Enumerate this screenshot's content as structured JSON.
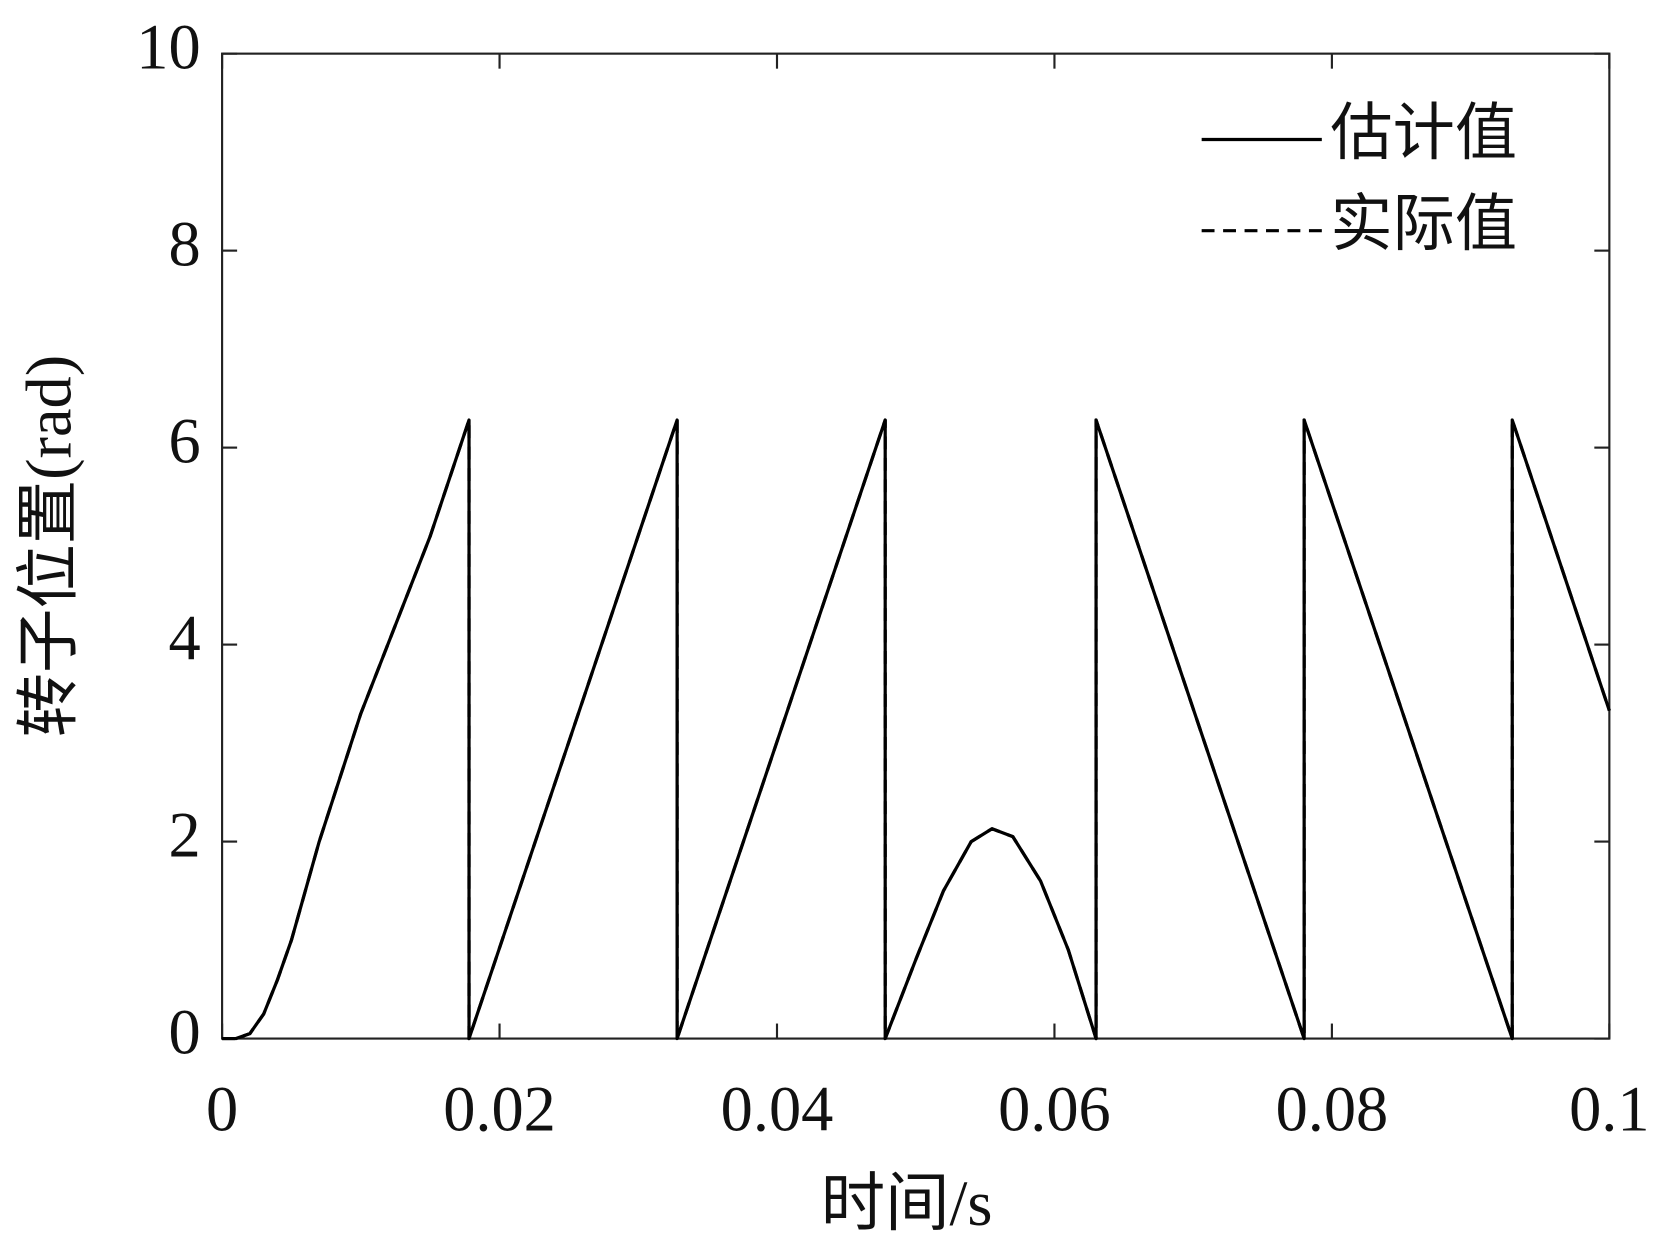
{
  "chart_data": {
    "type": "line",
    "x_label": "时间/s",
    "y_label": "转子位置(rad)",
    "x": [
      0,
      0.001,
      0.002,
      0.003,
      0.004,
      0.005,
      0.006,
      0.007,
      0.01,
      0.015,
      0.0178,
      0.0178,
      0.0328,
      0.0328,
      0.0478,
      0.0478,
      0.05,
      0.052,
      0.054,
      0.0555,
      0.057,
      0.059,
      0.061,
      0.063,
      0.063,
      0.078,
      0.078,
      0.093,
      0.093,
      0.1
    ],
    "series": [
      {
        "name": "估计值",
        "color": "#000000",
        "dash": false,
        "values": [
          0,
          0,
          0.05,
          0.25,
          0.6,
          1.0,
          1.5,
          2.0,
          3.3,
          5.1,
          6.28,
          0,
          6.28,
          0,
          6.28,
          0,
          0.8,
          1.5,
          2.0,
          2.13,
          2.05,
          1.6,
          0.9,
          0,
          6.28,
          0,
          6.28,
          0,
          6.28,
          3.33
        ]
      },
      {
        "name": "实际值",
        "color": "#000000",
        "dash": true,
        "values": [
          0,
          0,
          0.05,
          0.25,
          0.6,
          1.0,
          1.5,
          2.0,
          3.3,
          5.1,
          6.28,
          0,
          6.28,
          0,
          6.28,
          0,
          0.8,
          1.5,
          2.0,
          2.13,
          2.05,
          1.6,
          0.9,
          0,
          6.28,
          0,
          6.28,
          0,
          6.28,
          3.33
        ]
      }
    ],
    "xlim": [
      0,
      0.1
    ],
    "xticks": [
      0,
      0.02,
      0.04,
      0.06,
      0.08,
      0.1
    ],
    "ylim": [
      0,
      10
    ],
    "yticks": [
      0,
      2,
      4,
      6,
      8,
      10
    ],
    "grid": false,
    "legend": "upper right"
  }
}
